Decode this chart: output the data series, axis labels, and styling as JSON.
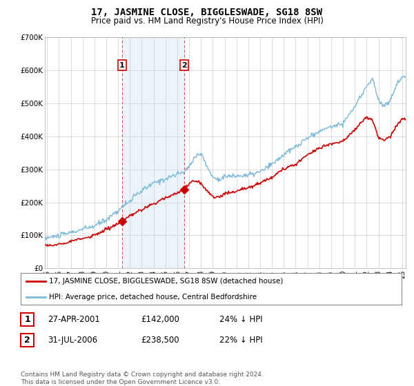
{
  "title": "17, JASMINE CLOSE, BIGGLESWADE, SG18 8SW",
  "subtitle": "Price paid vs. HM Land Registry's House Price Index (HPI)",
  "ylabel_ticks": [
    "£0",
    "£100K",
    "£200K",
    "£300K",
    "£400K",
    "£500K",
    "£600K",
    "£700K"
  ],
  "ylim": [
    0,
    700000
  ],
  "xlim_start": 1994.8,
  "xlim_end": 2025.3,
  "hpi_color": "#7ab8d9",
  "price_color": "#cc0000",
  "marker1_date": 2001.32,
  "marker1_price": 142000,
  "marker1_label": "1",
  "marker2_date": 2006.58,
  "marker2_price": 238500,
  "marker2_label": "2",
  "legend_line1": "17, JASMINE CLOSE, BIGGLESWADE, SG18 8SW (detached house)",
  "legend_line2": "HPI: Average price, detached house, Central Bedfordshire",
  "table_rows": [
    [
      "1",
      "27-APR-2001",
      "£142,000",
      "24% ↓ HPI"
    ],
    [
      "2",
      "31-JUL-2006",
      "£238,500",
      "22% ↓ HPI"
    ]
  ],
  "footnote": "Contains HM Land Registry data © Crown copyright and database right 2024.\nThis data is licensed under the Open Government Licence v3.0.",
  "bg_color": "#ffffff",
  "grid_color": "#cccccc",
  "shading_color": "#ddeef8"
}
